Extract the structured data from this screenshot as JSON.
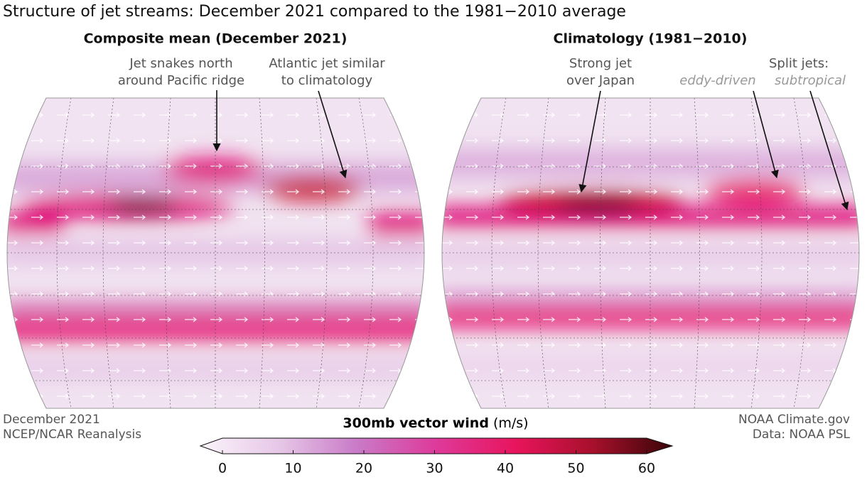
{
  "title": "Structure of jet streams: December 2021 compared to the 1981−2010 average",
  "panels": [
    {
      "title": "Composite mean (December 2021)",
      "annotations": [
        {
          "lines": [
            "Jet snakes north",
            "around Pacific ridge"
          ]
        },
        {
          "lines": [
            "Atlantic jet similar",
            "to climatology"
          ]
        }
      ]
    },
    {
      "title": "Climatology (1981−2010)",
      "annotations": [
        {
          "lines": [
            "Strong jet",
            "over Japan"
          ]
        },
        {
          "lines": [
            "Split jets:",
            "eddy-driven",
            "subtropical"
          ]
        }
      ]
    }
  ],
  "credits_left": [
    "December 2021",
    "NCEP/NCAR Reanalysis"
  ],
  "credits_right": [
    "NOAA Climate.gov",
    "Data: NOAA PSL"
  ],
  "colorbar": {
    "label": "300mb vector wind",
    "unit": "(m/s)",
    "ticks": [
      0,
      10,
      20,
      30,
      40,
      50,
      60
    ]
  }
}
